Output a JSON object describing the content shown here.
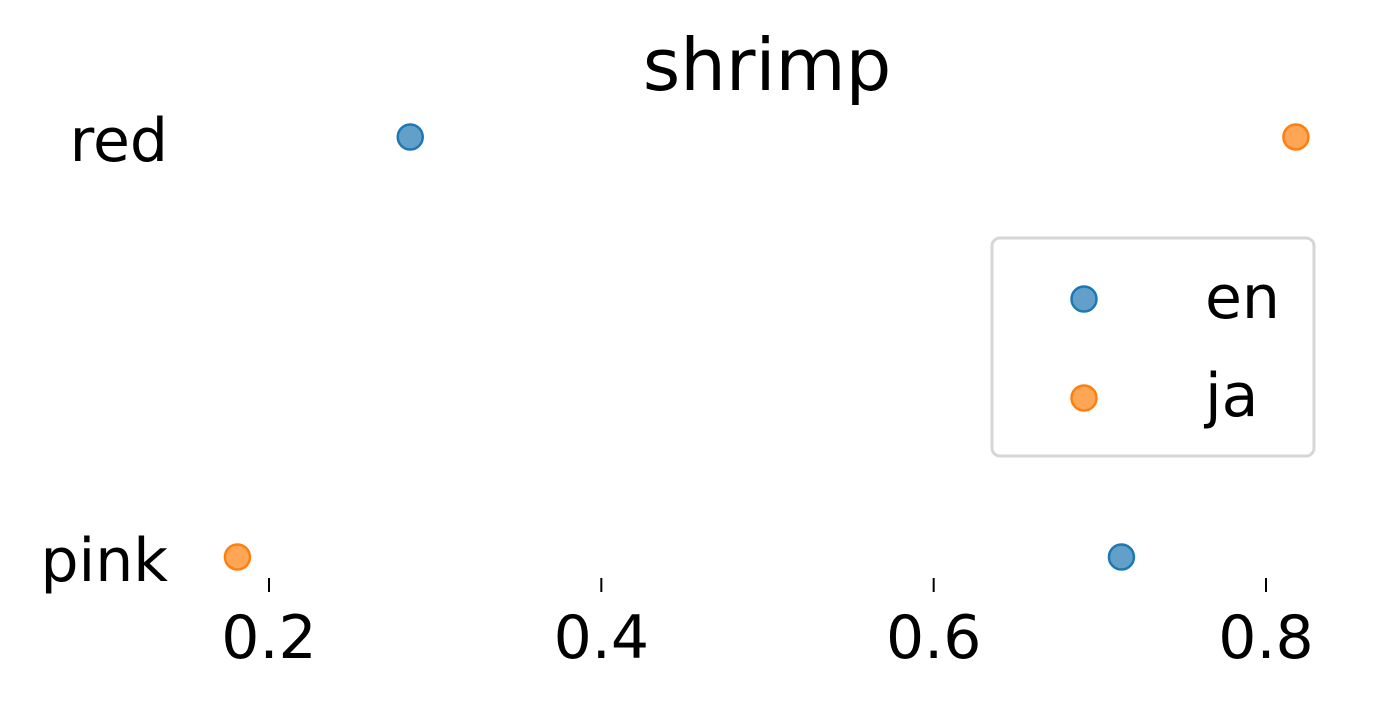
{
  "chart_data": {
    "type": "scatter",
    "title": "shrimp",
    "xlabel": "",
    "ylabel": "",
    "categories": [
      "red",
      "pink"
    ],
    "x_ticks": [
      "0.2",
      "0.4",
      "0.6",
      "0.8"
    ],
    "xlim": [
      0.14,
      0.835
    ],
    "series": [
      {
        "name": "en",
        "color": "#1f77b4",
        "values": [
          0.285,
          0.713
        ]
      },
      {
        "name": "ja",
        "color": "#ff7f0e",
        "values": [
          0.818,
          0.181
        ]
      }
    ],
    "legend_position": "right",
    "grid": false
  }
}
